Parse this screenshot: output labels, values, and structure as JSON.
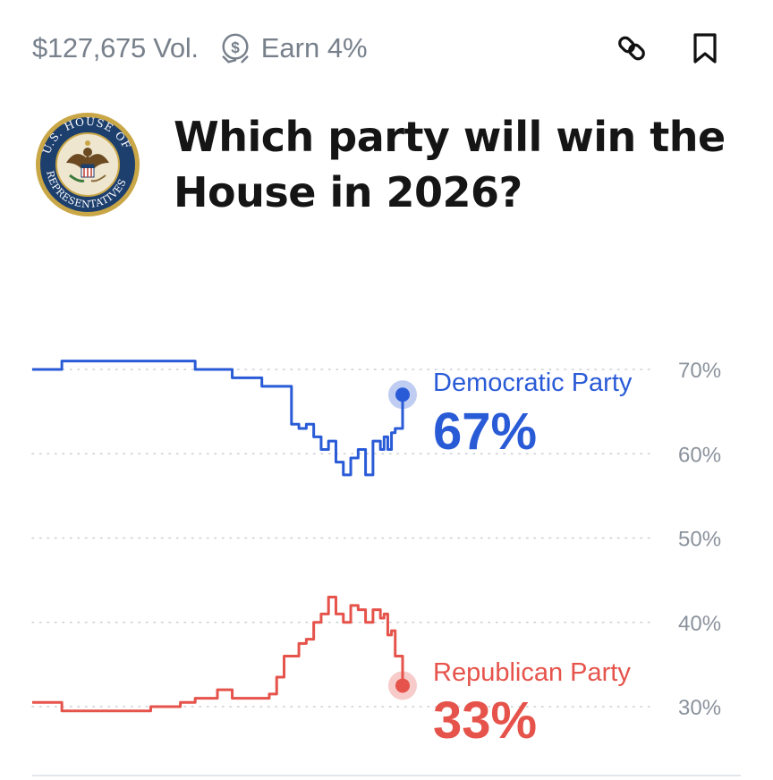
{
  "market": {
    "volume": "$127,675 Vol.",
    "earn_label": "Earn 4%",
    "title": "Which party will win the House in 2026?",
    "seal_name": "U.S. House of Representatives seal"
  },
  "icons": {
    "earn": "coin-cycle-icon",
    "link": "link-icon",
    "bookmark": "bookmark-icon"
  },
  "colors": {
    "democratic": "#2a5bd7",
    "republican": "#e5534b",
    "axis_text": "#8a929c",
    "grid": "#c9ced4"
  },
  "chart_data": {
    "type": "line",
    "ylim": [
      25,
      72
    ],
    "yticks": [
      30,
      40,
      50,
      60,
      70
    ],
    "ytick_labels": [
      "30%",
      "40%",
      "50%",
      "60%",
      "70%"
    ],
    "grid": "dotted horizontal",
    "x": [
      0,
      8,
      16,
      24,
      32,
      40,
      44,
      46,
      50,
      54,
      58,
      60,
      62,
      64,
      66,
      68,
      70,
      72,
      74,
      76,
      78,
      80,
      82,
      84,
      86,
      88,
      90,
      92,
      94,
      95,
      96,
      97,
      98,
      100
    ],
    "series": [
      {
        "name": "Democratic Party",
        "current_label": "67%",
        "color": "#2a5bd7",
        "values": [
          70.0,
          71.0,
          71.0,
          71.0,
          71.0,
          71.0,
          70.0,
          70.0,
          70.0,
          69.0,
          69.0,
          69.0,
          68.0,
          68.0,
          68.0,
          68.0,
          63.5,
          63.0,
          63.5,
          62.0,
          60.5,
          61.5,
          59.0,
          57.5,
          59.5,
          60.5,
          57.5,
          61.5,
          60.5,
          62.0,
          60.5,
          62.5,
          63.0,
          67.0
        ]
      },
      {
        "name": "Republican Party",
        "current_label": "33%",
        "color": "#e5534b",
        "values": [
          30.5,
          29.5,
          29.5,
          29.5,
          30.0,
          30.5,
          31.0,
          31.0,
          32.0,
          31.0,
          31.0,
          31.0,
          31.0,
          31.5,
          33.5,
          36.0,
          36.0,
          37.5,
          38.0,
          40.0,
          41.0,
          43.0,
          41.0,
          40.0,
          42.0,
          41.5,
          40.0,
          41.5,
          40.5,
          41.0,
          38.5,
          39.0,
          36.0,
          32.5
        ]
      }
    ]
  }
}
